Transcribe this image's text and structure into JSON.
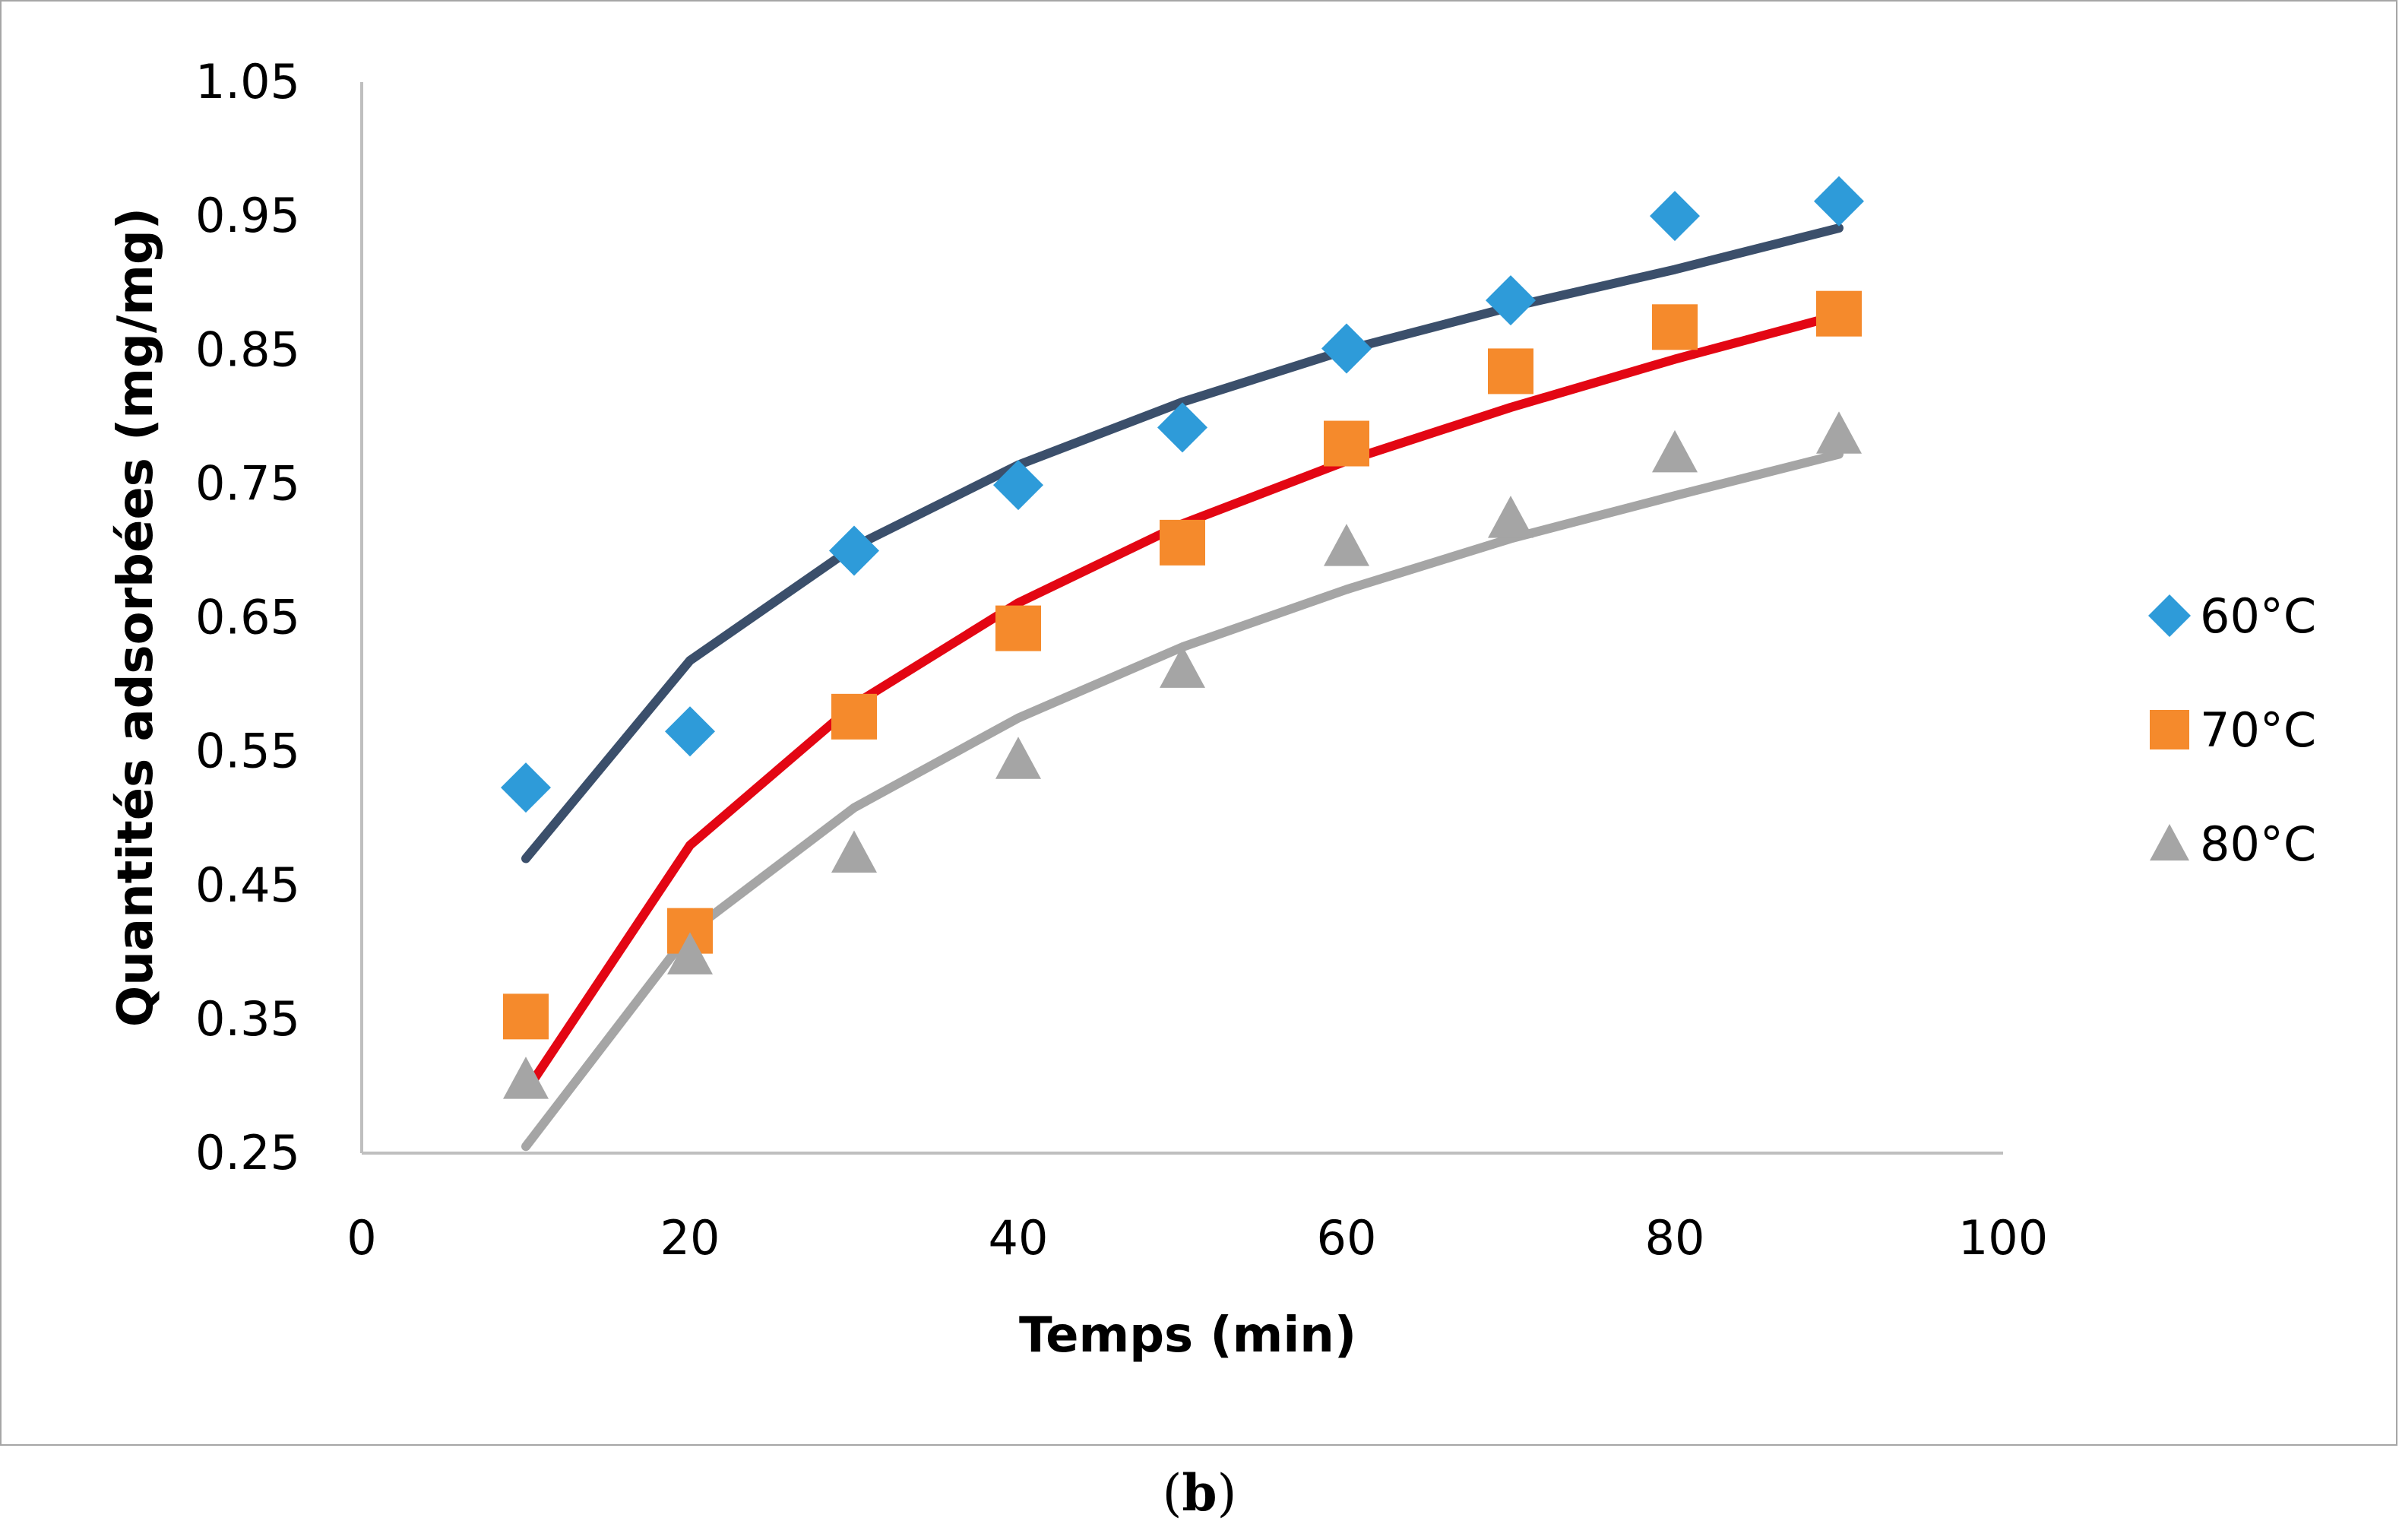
{
  "caption": {
    "open": "(",
    "letter": "b",
    "close": ")"
  },
  "chart_data": {
    "type": "scatter",
    "title": "",
    "xlabel": "Temps (min)",
    "ylabel": "Quantités adsorbées (mg/mg)",
    "xlim": [
      0,
      100
    ],
    "ylim": [
      0.25,
      1.05
    ],
    "xticks": [
      0,
      20,
      40,
      60,
      80,
      100
    ],
    "yticks": [
      0.25,
      0.35,
      0.45,
      0.55,
      0.65,
      0.75,
      0.85,
      0.95,
      1.05
    ],
    "ytick_labels": [
      "0.25",
      "0.35",
      "0.45",
      "0.55",
      "0.65",
      "0.75",
      "0.85",
      "0.95",
      "1.05"
    ],
    "grid": false,
    "legend_position": "right",
    "x": [
      10,
      20,
      30,
      40,
      50,
      60,
      70,
      80,
      90
    ],
    "series": [
      {
        "name": "60°C",
        "marker": "diamond",
        "color": "#2e9bd9",
        "trend_color": "#3b4f6b",
        "values": [
          0.523,
          0.565,
          0.7,
          0.749,
          0.792,
          0.851,
          0.887,
          0.95,
          0.961
        ],
        "trend": {
          "type": "log",
          "x": [
            10,
            20,
            30,
            40,
            50,
            60,
            70,
            80,
            90
          ],
          "y": [
            0.47,
            0.618,
            0.703,
            0.764,
            0.811,
            0.85,
            0.882,
            0.91,
            0.941
          ]
        }
      },
      {
        "name": "70°C",
        "marker": "square",
        "color": "#f58a2c",
        "trend_color": "#e30613",
        "values": [
          0.352,
          0.416,
          0.576,
          0.642,
          0.706,
          0.78,
          0.834,
          0.867,
          0.877
        ],
        "trend": {
          "type": "log",
          "x": [
            10,
            20,
            30,
            40,
            50,
            60,
            70,
            80,
            90
          ],
          "y": [
            0.296,
            0.48,
            0.585,
            0.661,
            0.72,
            0.767,
            0.807,
            0.843,
            0.876
          ]
        }
      },
      {
        "name": "80°C",
        "marker": "triangle",
        "color": "#a5a5a5",
        "trend_color": "#a5a5a5",
        "values": [
          0.305,
          0.398,
          0.474,
          0.544,
          0.612,
          0.703,
          0.724,
          0.773,
          0.787
        ],
        "trend": {
          "type": "log",
          "x": [
            10,
            20,
            30,
            40,
            50,
            60,
            70,
            80,
            90
          ],
          "y": [
            0.255,
            0.415,
            0.508,
            0.575,
            0.628,
            0.671,
            0.709,
            0.741,
            0.772
          ]
        }
      }
    ]
  }
}
